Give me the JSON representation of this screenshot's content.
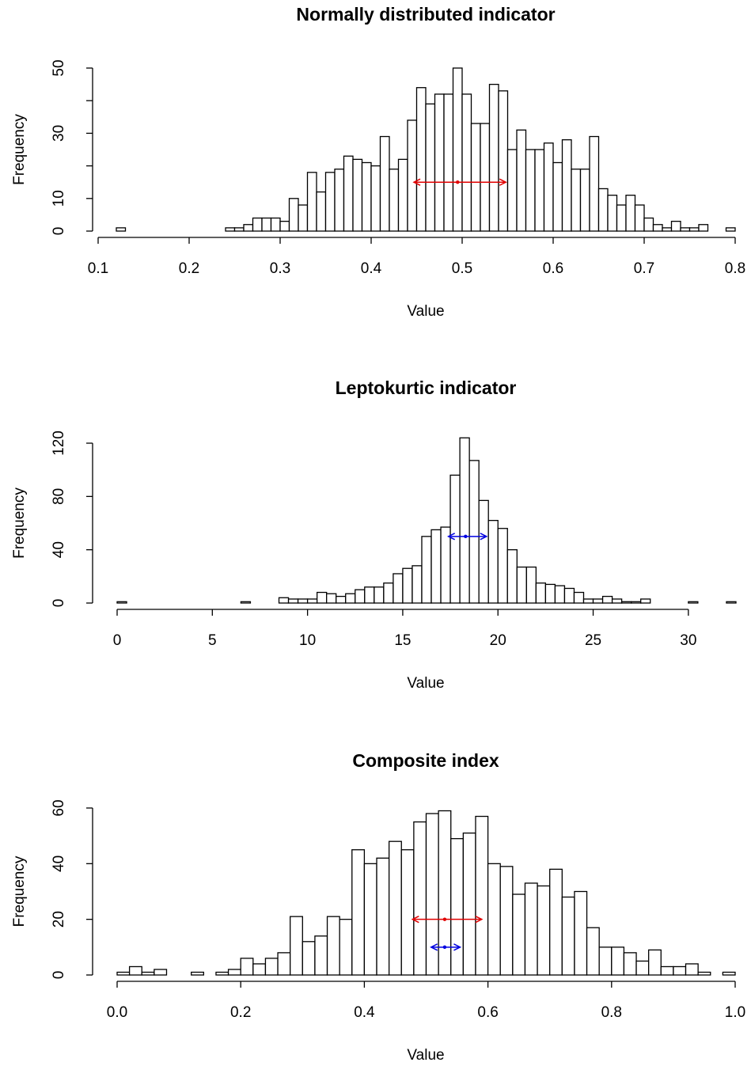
{
  "chart_data": [
    {
      "type": "histogram",
      "title": "Normally distributed indicator",
      "xlabel": "Value",
      "ylabel": "Frequency",
      "bins": [
        0.12,
        0.13,
        0.14,
        0.15,
        0.16,
        0.17,
        0.18,
        0.19,
        0.2,
        0.21,
        0.22,
        0.23,
        0.24,
        0.25,
        0.26,
        0.27,
        0.28,
        0.29,
        0.3,
        0.31,
        0.32,
        0.33,
        0.34,
        0.35,
        0.36,
        0.37,
        0.38,
        0.39,
        0.4,
        0.41,
        0.42,
        0.43,
        0.44,
        0.45,
        0.46,
        0.47,
        0.48,
        0.49,
        0.5,
        0.51,
        0.52,
        0.53,
        0.54,
        0.55,
        0.56,
        0.57,
        0.58,
        0.59,
        0.6,
        0.61,
        0.62,
        0.63,
        0.64,
        0.65,
        0.66,
        0.67,
        0.68,
        0.69,
        0.7,
        0.71,
        0.72,
        0.73,
        0.74,
        0.75,
        0.76,
        0.77,
        0.78,
        0.79,
        0.8
      ],
      "values": [
        1,
        0,
        0,
        0,
        0,
        0,
        0,
        0,
        0,
        0,
        0,
        0,
        1,
        1,
        2,
        4,
        4,
        4,
        3,
        10,
        8,
        18,
        12,
        18,
        19,
        23,
        22,
        21,
        20,
        29,
        19,
        22,
        34,
        44,
        39,
        42,
        42,
        50,
        42,
        33,
        33,
        45,
        43,
        25,
        31,
        25,
        25,
        27,
        21,
        28,
        19,
        19,
        29,
        13,
        11,
        8,
        11,
        8,
        4,
        2,
        1,
        3,
        1,
        1,
        2,
        0,
        0,
        1
      ],
      "xlim": [
        0.1,
        0.8
      ],
      "ylim": [
        0,
        50
      ],
      "xticks": [
        0.1,
        0.2,
        0.3,
        0.4,
        0.5,
        0.6,
        0.7,
        0.8
      ],
      "yticks": [
        0,
        10,
        {
          "value": 20,
          "label": null
        },
        30,
        {
          "value": 40,
          "label": null
        },
        50
      ],
      "intervals": [
        {
          "x0": 0.447,
          "x1": 0.548,
          "mid": 0.495,
          "y": 15,
          "color": "#e00000"
        }
      ]
    },
    {
      "type": "histogram",
      "title": "Leptokurtic indicator",
      "xlabel": "Value",
      "ylabel": "Frequency",
      "bins": [
        0,
        0.5,
        1,
        1.5,
        2,
        2.5,
        3,
        3.5,
        4,
        4.5,
        5,
        5.5,
        6,
        6.5,
        7,
        7.5,
        8,
        8.5,
        9,
        9.5,
        10,
        10.5,
        11,
        11.5,
        12,
        12.5,
        13,
        13.5,
        14,
        14.5,
        15,
        15.5,
        16,
        16.5,
        17,
        17.5,
        18,
        18.5,
        19,
        19.5,
        20,
        20.5,
        21,
        21.5,
        22,
        22.5,
        23,
        23.5,
        24,
        24.5,
        25,
        25.5,
        26,
        26.5,
        27,
        27.5,
        28,
        28.5,
        29,
        29.5,
        30,
        30.5,
        31,
        31.5,
        32,
        32.5
      ],
      "values": [
        1,
        0,
        0,
        0,
        0,
        0,
        0,
        0,
        0,
        0,
        0,
        0,
        0,
        1,
        0,
        0,
        0,
        4,
        3,
        3,
        3,
        8,
        7,
        5,
        7,
        10,
        12,
        12,
        15,
        22,
        26,
        28,
        50,
        55,
        57,
        96,
        124,
        107,
        77,
        62,
        56,
        40,
        27,
        27,
        15,
        14,
        13,
        11,
        8,
        3,
        3,
        5,
        3,
        1,
        1,
        3,
        0,
        0,
        0,
        0,
        1,
        0,
        0,
        0,
        1
      ],
      "xlim": [
        0,
        32.5
      ],
      "ylim": [
        0,
        120
      ],
      "xticks": [
        0,
        5,
        10,
        15,
        20,
        25,
        30
      ],
      "yticks": [
        0,
        40,
        80,
        120
      ],
      "intervals": [
        {
          "x0": 17.4,
          "x1": 19.4,
          "mid": 18.3,
          "y": 50,
          "color": "#0000e0"
        }
      ]
    },
    {
      "type": "histogram",
      "title": "Composite index",
      "xlabel": "Value",
      "ylabel": "Frequency",
      "bins": [
        0,
        0.02,
        0.04,
        0.06,
        0.08,
        0.1,
        0.12,
        0.14,
        0.16,
        0.18,
        0.2,
        0.22,
        0.24,
        0.26,
        0.28,
        0.3,
        0.32,
        0.34,
        0.36,
        0.38,
        0.4,
        0.42,
        0.44,
        0.46,
        0.48,
        0.5,
        0.52,
        0.54,
        0.56,
        0.58,
        0.6,
        0.62,
        0.64,
        0.66,
        0.68,
        0.7,
        0.72,
        0.74,
        0.76,
        0.78,
        0.8,
        0.82,
        0.84,
        0.86,
        0.88,
        0.9,
        0.92,
        0.94,
        0.96,
        0.98,
        1
      ],
      "values": [
        1,
        3,
        1,
        2,
        0,
        0,
        1,
        0,
        1,
        2,
        6,
        4,
        6,
        8,
        21,
        12,
        14,
        21,
        20,
        45,
        40,
        42,
        48,
        45,
        55,
        58,
        59,
        49,
        51,
        57,
        40,
        39,
        29,
        33,
        32,
        38,
        28,
        30,
        17,
        10,
        10,
        8,
        5,
        9,
        3,
        3,
        4,
        1,
        0,
        1
      ],
      "xlim": [
        0,
        1
      ],
      "ylim": [
        0,
        60
      ],
      "xticks": [
        {
          "value": 0,
          "label": "0.0"
        },
        0.2,
        0.4,
        0.6,
        0.8,
        {
          "value": 1,
          "label": "1.0"
        }
      ],
      "yticks": [
        0,
        20,
        40,
        60
      ],
      "intervals": [
        {
          "x0": 0.478,
          "x1": 0.59,
          "mid": 0.53,
          "y": 20,
          "color": "#e00000"
        },
        {
          "x0": 0.508,
          "x1": 0.555,
          "mid": 0.53,
          "y": 10,
          "color": "#0000e0"
        }
      ]
    }
  ]
}
